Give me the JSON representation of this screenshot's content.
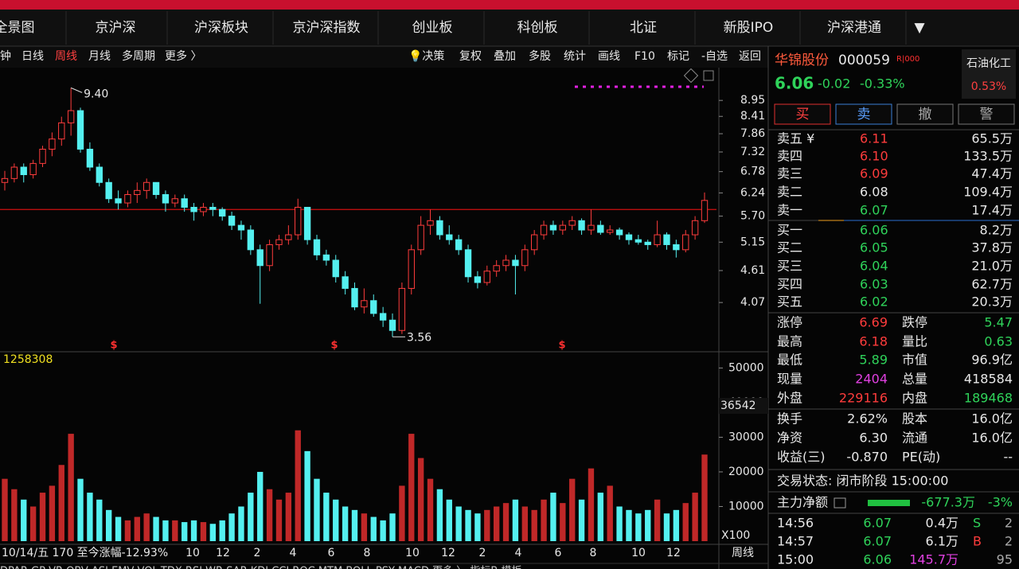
{
  "nav": [
    "全景图",
    "京沪深",
    "沪深板块",
    "京沪深指数",
    "创业板",
    "科创板",
    "北证",
    "新股IPO",
    "沪深港通",
    "▼"
  ],
  "toolbar_left": [
    "钟",
    "日线",
    "周线",
    "月线",
    "多周期",
    "更多 〉"
  ],
  "toolbar_right": [
    "💡决策",
    "复权",
    "叠加",
    "多股",
    "统计",
    "画线",
    "F10",
    "标记",
    "-自选",
    "返回"
  ],
  "chart_data": {
    "type": "candlestick",
    "log_scale": true,
    "ylim": [
      3.38,
      10.17
    ],
    "yticks": [
      {
        "value": 8.95,
        "label": "8.95"
      },
      {
        "value": 8.41,
        "label": "8.41"
      },
      {
        "value": 7.86,
        "label": "7.86"
      },
      {
        "value": 7.32,
        "label": "7.32"
      },
      {
        "value": 6.78,
        "label": "6.78"
      },
      {
        "value": 6.24,
        "label": "6.24"
      },
      {
        "value": 5.7,
        "label": "5.70"
      },
      {
        "value": 5.15,
        "label": "5.15"
      },
      {
        "value": 4.61,
        "label": "4.61"
      },
      {
        "value": 4.07,
        "label": "4.07"
      }
    ],
    "up_color": "#ff3c3c",
    "down_color": "#54f0f0",
    "reference_line": 5.85,
    "high_label": {
      "value": 9.4,
      "label": "9.40",
      "index": 7
    },
    "low_label": {
      "value": 3.56,
      "label": "3.56",
      "index": 41
    },
    "markers": [
      "$",
      "$",
      "$"
    ],
    "candles": [
      [
        6.5,
        6.8,
        6.3,
        6.6
      ],
      [
        6.6,
        7.0,
        6.5,
        6.9
      ],
      [
        6.9,
        7.0,
        6.5,
        6.7
      ],
      [
        6.7,
        7.1,
        6.6,
        7.0
      ],
      [
        7.0,
        7.5,
        6.9,
        7.4
      ],
      [
        7.4,
        7.9,
        7.2,
        7.7
      ],
      [
        7.7,
        8.4,
        7.5,
        8.2
      ],
      [
        8.2,
        9.4,
        7.8,
        8.6
      ],
      [
        8.6,
        8.7,
        7.3,
        7.4
      ],
      [
        7.4,
        7.6,
        6.8,
        6.9
      ],
      [
        6.9,
        7.0,
        6.4,
        6.5
      ],
      [
        6.5,
        6.6,
        6.0,
        6.1
      ],
      [
        6.1,
        6.3,
        5.85,
        6.0
      ],
      [
        6.0,
        6.3,
        5.9,
        6.2
      ],
      [
        6.2,
        6.5,
        6.0,
        6.3
      ],
      [
        6.3,
        6.6,
        6.1,
        6.5
      ],
      [
        6.5,
        6.5,
        6.1,
        6.2
      ],
      [
        6.2,
        6.3,
        5.8,
        6.0
      ],
      [
        6.0,
        6.2,
        5.9,
        6.1
      ],
      [
        6.1,
        6.2,
        5.8,
        5.9
      ],
      [
        5.9,
        6.0,
        5.6,
        5.8
      ],
      [
        5.8,
        6.0,
        5.7,
        5.9
      ],
      [
        5.9,
        6.0,
        5.7,
        5.85
      ],
      [
        5.85,
        5.9,
        5.6,
        5.7
      ],
      [
        5.7,
        5.8,
        5.4,
        5.5
      ],
      [
        5.5,
        5.6,
        5.2,
        5.4
      ],
      [
        5.4,
        5.5,
        4.9,
        5.0
      ],
      [
        5.0,
        5.1,
        4.05,
        4.7
      ],
      [
        4.7,
        5.2,
        4.6,
        5.1
      ],
      [
        5.1,
        5.3,
        5.0,
        5.2
      ],
      [
        5.2,
        5.5,
        5.1,
        5.3
      ],
      [
        5.3,
        6.1,
        5.2,
        5.9
      ],
      [
        5.9,
        5.9,
        5.1,
        5.2
      ],
      [
        5.2,
        5.3,
        4.8,
        4.9
      ],
      [
        4.9,
        5.0,
        4.7,
        4.8
      ],
      [
        4.8,
        4.9,
        4.4,
        4.5
      ],
      [
        4.5,
        4.6,
        4.2,
        4.3
      ],
      [
        4.3,
        4.4,
        3.95,
        4.0
      ],
      [
        4.0,
        4.3,
        3.9,
        4.1
      ],
      [
        4.1,
        4.2,
        3.85,
        3.9
      ],
      [
        3.9,
        4.0,
        3.7,
        3.8
      ],
      [
        3.8,
        3.9,
        3.56,
        3.65
      ],
      [
        3.65,
        4.4,
        3.6,
        4.3
      ],
      [
        4.3,
        5.1,
        4.2,
        5.0
      ],
      [
        5.0,
        5.7,
        4.9,
        5.5
      ],
      [
        5.5,
        5.85,
        5.3,
        5.6
      ],
      [
        5.6,
        5.7,
        5.2,
        5.3
      ],
      [
        5.3,
        5.5,
        5.1,
        5.2
      ],
      [
        5.2,
        5.3,
        4.9,
        5.0
      ],
      [
        5.0,
        5.1,
        4.4,
        4.5
      ],
      [
        4.5,
        4.6,
        4.3,
        4.4
      ],
      [
        4.4,
        4.7,
        4.35,
        4.6
      ],
      [
        4.6,
        4.8,
        4.5,
        4.7
      ],
      [
        4.7,
        4.9,
        4.6,
        4.8
      ],
      [
        4.8,
        4.9,
        4.2,
        4.7
      ],
      [
        4.7,
        5.1,
        4.6,
        5.0
      ],
      [
        5.0,
        5.4,
        4.9,
        5.3
      ],
      [
        5.3,
        5.6,
        5.2,
        5.5
      ],
      [
        5.5,
        5.6,
        5.3,
        5.4
      ],
      [
        5.4,
        5.6,
        5.3,
        5.5
      ],
      [
        5.5,
        5.7,
        5.4,
        5.6
      ],
      [
        5.6,
        5.65,
        5.3,
        5.4
      ],
      [
        5.4,
        5.85,
        5.3,
        5.5
      ],
      [
        5.5,
        5.6,
        5.3,
        5.35
      ],
      [
        5.35,
        5.5,
        5.3,
        5.4
      ],
      [
        5.4,
        5.45,
        5.2,
        5.3
      ],
      [
        5.3,
        5.35,
        5.1,
        5.2
      ],
      [
        5.2,
        5.3,
        5.1,
        5.15
      ],
      [
        5.15,
        5.2,
        5.0,
        5.1
      ],
      [
        5.1,
        5.6,
        5.05,
        5.3
      ],
      [
        5.3,
        5.35,
        5.0,
        5.1
      ],
      [
        5.1,
        5.2,
        4.85,
        5.0
      ],
      [
        5.0,
        5.4,
        4.95,
        5.3
      ],
      [
        5.3,
        5.7,
        5.2,
        5.6
      ],
      [
        5.6,
        6.25,
        5.55,
        6.06
      ]
    ],
    "volume": {
      "label": "1258308",
      "ylim": [
        0,
        54000
      ],
      "yticks": [
        10000,
        20000,
        30000,
        40000,
        50000
      ],
      "cursor_label": "36542",
      "unit_label": "X100",
      "values": [
        18000,
        15000,
        12000,
        10000,
        14000,
        16000,
        22000,
        31000,
        18000,
        14000,
        12000,
        9000,
        7000,
        6000,
        7000,
        8000,
        7000,
        6000,
        6000,
        5500,
        6000,
        5500,
        5000,
        6000,
        8000,
        10000,
        14000,
        20000,
        15000,
        12000,
        14000,
        32000,
        26000,
        18000,
        14000,
        12000,
        10000,
        9000,
        8000,
        7000,
        6000,
        8000,
        16000,
        31000,
        24000,
        18000,
        15000,
        12000,
        10000,
        9000,
        8000,
        9000,
        10000,
        11000,
        12000,
        10000,
        9000,
        12000,
        14000,
        11000,
        18000,
        12000,
        21000,
        14000,
        16000,
        10000,
        9000,
        8000,
        9000,
        12000,
        8000,
        9000,
        11000,
        14000,
        25000
      ]
    },
    "x_info": "10/14/五 170 至今涨幅-12.93%",
    "x_labels": [
      "10",
      "12",
      "2",
      "4",
      "6",
      "8",
      "10",
      "12",
      "2",
      "4",
      "6",
      "8",
      "10",
      "12"
    ],
    "period_label": "周线",
    "indicators": "DPAR  GP  VR  OBV  ASI  EMV  VOL-TDX  RSI  WR  SAR  KDJ  CCI  ROC  MTM  BOLL  PSY  MACD  更多 〉    指标B   模板"
  },
  "quote": {
    "name": "华锦股份",
    "code": "000059",
    "tag": "R|000",
    "price": "6.06",
    "change": "-0.02",
    "pct": "-0.33%",
    "sector": "石油化工",
    "sector_pct": "0.53%"
  },
  "buttons": [
    "买",
    "卖",
    "撤",
    "警"
  ],
  "orderbook": [
    {
      "label": "卖五 ¥",
      "price": "6.11",
      "volume": "65.5万",
      "color": "up"
    },
    {
      "label": "卖四",
      "price": "6.10",
      "volume": "133.5万",
      "color": "up"
    },
    {
      "label": "卖三",
      "price": "6.09",
      "volume": "47.4万",
      "color": "up"
    },
    {
      "label": "卖二",
      "price": "6.08",
      "volume": "109.4万",
      "color": "flat"
    },
    {
      "label": "卖一",
      "price": "6.07",
      "volume": "17.4万",
      "color": "down"
    },
    {
      "label": "买一",
      "price": "6.06",
      "volume": "8.2万",
      "color": "down"
    },
    {
      "label": "买二",
      "price": "6.05",
      "volume": "37.8万",
      "color": "down"
    },
    {
      "label": "买三",
      "price": "6.04",
      "volume": "21.0万",
      "color": "down"
    },
    {
      "label": "买四",
      "price": "6.03",
      "volume": "62.7万",
      "color": "down"
    },
    {
      "label": "买五",
      "price": "6.02",
      "volume": "20.3万",
      "color": "down"
    }
  ],
  "stats": [
    [
      {
        "label": "涨停",
        "value": "6.69",
        "color": "up"
      },
      {
        "label": "跌停",
        "value": "5.47",
        "color": "down"
      }
    ],
    [
      {
        "label": "最高",
        "value": "6.18",
        "color": "up"
      },
      {
        "label": "量比",
        "value": "0.63",
        "color": "down"
      }
    ],
    [
      {
        "label": "最低",
        "value": "5.89",
        "color": "down"
      },
      {
        "label": "市值",
        "value": "96.9亿",
        "color": "flat"
      }
    ],
    [
      {
        "label": "现量",
        "value": "2404",
        "color": "vol"
      },
      {
        "label": "总量",
        "value": "418584",
        "color": "flat"
      }
    ],
    [
      {
        "label": "外盘",
        "value": "229116",
        "color": "up"
      },
      {
        "label": "内盘",
        "value": "189468",
        "color": "down"
      }
    ],
    [
      {
        "label": "换手",
        "value": "2.62%",
        "color": "flat"
      },
      {
        "label": "股本",
        "value": "16.0亿",
        "color": "flat"
      }
    ],
    [
      {
        "label": "净资",
        "value": "6.30",
        "color": "flat"
      },
      {
        "label": "流通",
        "value": "16.0亿",
        "color": "flat"
      }
    ],
    [
      {
        "label": "收益(三)",
        "value": "-0.870",
        "color": "flat"
      },
      {
        "label": "PE(动)",
        "value": "--",
        "color": "flat"
      }
    ]
  ],
  "status": "交易状态: 闭市阶段 15:00:00",
  "main_flow": {
    "label": "主力净额",
    "value": "-677.3万",
    "pct": "-3%"
  },
  "ticks": [
    {
      "time": "14:56",
      "price": "6.07",
      "volume": "0.4万",
      "side": "S",
      "count": "2",
      "color": "down"
    },
    {
      "time": "14:57",
      "price": "6.07",
      "volume": "6.1万",
      "side": "B",
      "count": "2",
      "color": "up"
    },
    {
      "time": "15:00",
      "price": "6.06",
      "volume": "145.7万",
      "side": "",
      "count": "95",
      "color": "vol"
    }
  ]
}
